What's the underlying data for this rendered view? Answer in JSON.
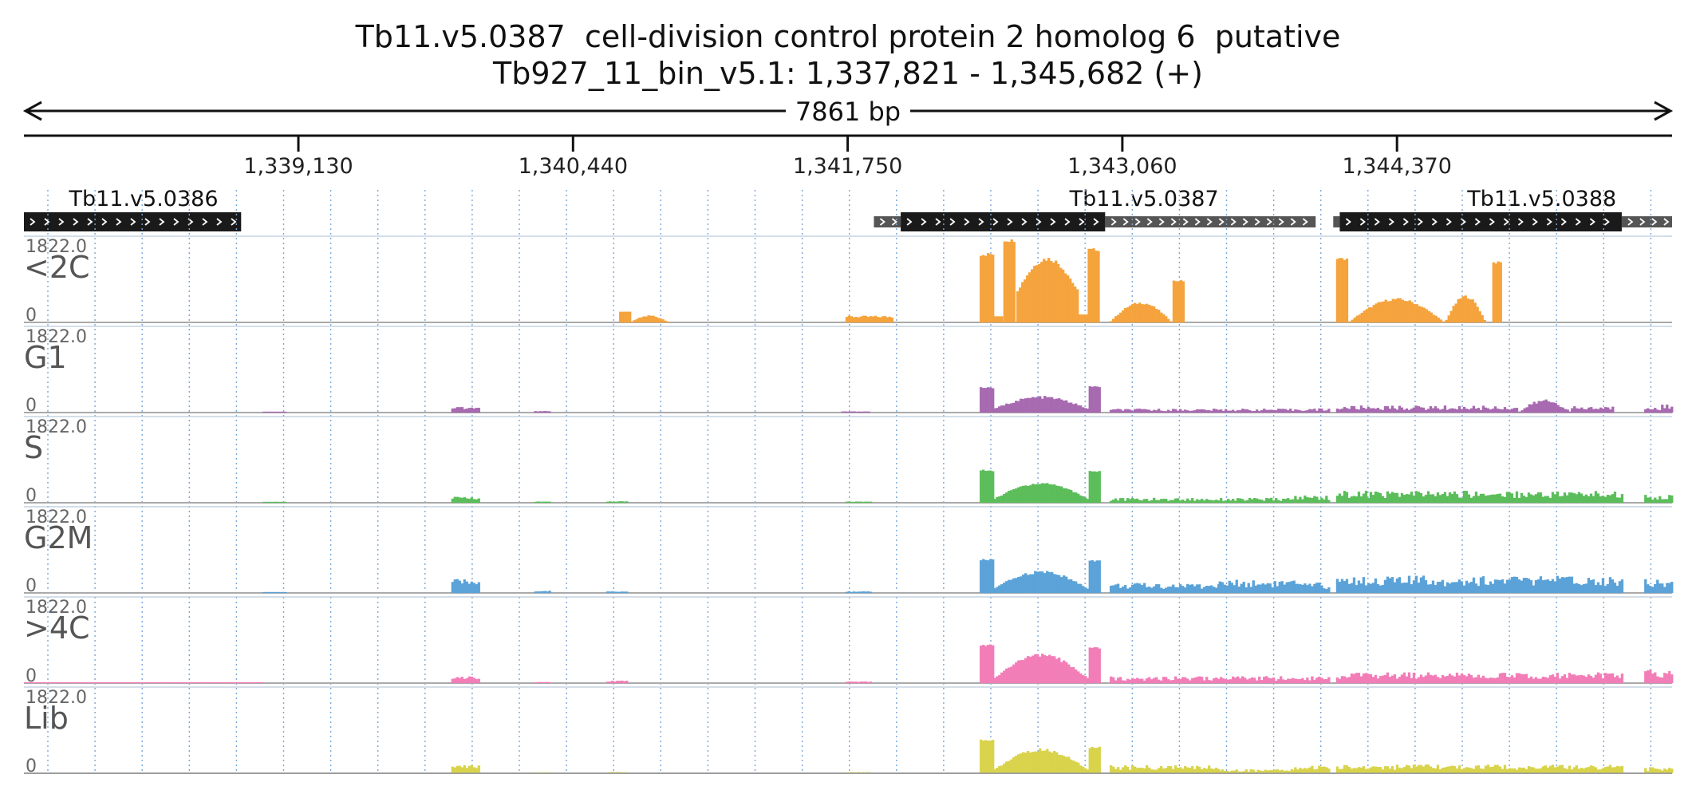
{
  "title": "Tb11.v5.0387  cell-division control protein 2 homolog 6  putative",
  "subtitle": "Tb927_11_bin_v5.1: 1,337,821 - 1,345,682 (+)",
  "span_label": "7861 bp",
  "region": {
    "start": 1337821,
    "end": 1345682
  },
  "colors": {
    "<2C": "#f5a33c",
    "G1": "#a769b0",
    "S": "#5bbd5a",
    "G2M": "#5aa2d8",
    ">4C": "#f27db7",
    "Lib": "#d8d34a",
    "gene": "#1a1a1a",
    "utr": "#555555",
    "grid": "#7aa7d8"
  },
  "chart_data": {
    "type": "area",
    "x_axis": {
      "ticks": [
        1339130,
        1340440,
        1341750,
        1343060,
        1344370
      ],
      "tick_labels": [
        "1,339,130",
        "1,340,440",
        "1,341,750",
        "1,343,060",
        "1,344,370"
      ],
      "range": [
        1337821,
        1345682
      ]
    },
    "genes": [
      {
        "name": "Tb11.v5.0386",
        "utr5": null,
        "cds": [
          1337821,
          1338857
        ],
        "utr3": null,
        "strand": "+"
      },
      {
        "name": "Tb11.v5.0387",
        "utr5": [
          1341875,
          1342003
        ],
        "cds": [
          1342003,
          1342978
        ],
        "utr3": [
          1342978,
          1343982
        ],
        "strand": "+"
      },
      {
        "name": "Tb11.v5.0388",
        "utr5": [
          1344066,
          1344097
        ],
        "cds": [
          1344097,
          1345442
        ],
        "utr3": [
          1345442,
          1345682
        ],
        "strand": "+"
      }
    ],
    "grid": true,
    "tracks": [
      {
        "name": "<2C",
        "ymax": "1822.0",
        "ymin": "0",
        "segments": [
          {
            "x": [
              1340660,
              1340715
            ],
            "shape": "flat",
            "y": 230,
            "noise": 0
          },
          {
            "x": [
              1340715,
              1340900
            ],
            "shape": "hump",
            "y": 140,
            "noise": 0.15
          },
          {
            "x": [
              1341740,
              1341965
            ],
            "shape": "flat",
            "y": 120,
            "noise": 0.2
          },
          {
            "x": [
              1342380,
              1342445
            ],
            "shape": "flat",
            "y": 1480,
            "noise": 0.03
          },
          {
            "x": [
              1342445,
              1342493
            ],
            "shape": "flat",
            "y": 130,
            "noise": 0
          },
          {
            "x": [
              1342493,
              1342555
            ],
            "shape": "flat",
            "y": 1780,
            "noise": 0.02
          },
          {
            "x": [
              1342555,
              1342850
            ],
            "shape": "hump",
            "y": 1380,
            "min": 650,
            "noise": 0.04
          },
          {
            "x": [
              1342850,
              1342895
            ],
            "shape": "flat",
            "y": 170,
            "noise": 0
          },
          {
            "x": [
              1342895,
              1342955
            ],
            "shape": "flat",
            "y": 1580,
            "noise": 0.02
          },
          {
            "x": [
              1343000,
              1343300
            ],
            "shape": "hump",
            "y": 420,
            "noise": 0.06
          },
          {
            "x": [
              1343300,
              1343360
            ],
            "shape": "flat",
            "y": 900,
            "noise": 0.02
          },
          {
            "x": [
              1344080,
              1344140
            ],
            "shape": "flat",
            "y": 1380,
            "noise": 0.02
          },
          {
            "x": [
              1344140,
              1344600
            ],
            "shape": "hump",
            "y": 500,
            "noise": 0.06
          },
          {
            "x": [
              1344600,
              1344795
            ],
            "shape": "hump",
            "y": 560,
            "noise": 0.06
          },
          {
            "x": [
              1344825,
              1344870
            ],
            "shape": "flat",
            "y": 1300,
            "noise": 0.02
          }
        ]
      },
      {
        "name": "G1",
        "ymax": "1822.0",
        "ymin": "0",
        "segments": [
          {
            "x": [
              1338960,
              1339070
            ],
            "shape": "flat",
            "y": 15,
            "noise": 0.3
          },
          {
            "x": [
              1339860,
              1340000
            ],
            "shape": "flat",
            "y": 100,
            "noise": 0.3
          },
          {
            "x": [
              1340255,
              1340330
            ],
            "shape": "flat",
            "y": 25,
            "noise": 0.3
          },
          {
            "x": [
              1341720,
              1341860
            ],
            "shape": "flat",
            "y": 20,
            "noise": 0.3
          },
          {
            "x": [
              1342380,
              1342445
            ],
            "shape": "flat",
            "y": 540,
            "noise": 0.03
          },
          {
            "x": [
              1342445,
              1342900
            ],
            "shape": "hump",
            "y": 330,
            "min": 70,
            "noise": 0.1
          },
          {
            "x": [
              1342900,
              1342955
            ],
            "shape": "flat",
            "y": 560,
            "noise": 0.03
          },
          {
            "x": [
              1343000,
              1343880
            ],
            "shape": "flat",
            "y": 55,
            "noise": 0.5
          },
          {
            "x": [
              1343880,
              1344050
            ],
            "shape": "flat",
            "y": 60,
            "noise": 0.5
          },
          {
            "x": [
              1344080,
              1344950
            ],
            "shape": "flat",
            "y": 100,
            "noise": 0.5
          },
          {
            "x": [
              1344950,
              1345200
            ],
            "shape": "hump",
            "y": 250,
            "noise": 0.2
          },
          {
            "x": [
              1345200,
              1345400
            ],
            "shape": "flat",
            "y": 90,
            "noise": 0.5
          },
          {
            "x": [
              1345550,
              1345682
            ],
            "shape": "flat",
            "y": 120,
            "noise": 0.6
          }
        ]
      },
      {
        "name": "S",
        "ymax": "1822.0",
        "ymin": "0",
        "segments": [
          {
            "x": [
              1338960,
              1339070
            ],
            "shape": "flat",
            "y": 15,
            "noise": 0.3
          },
          {
            "x": [
              1339860,
              1340000
            ],
            "shape": "flat",
            "y": 100,
            "noise": 0.3
          },
          {
            "x": [
              1340255,
              1340330
            ],
            "shape": "flat",
            "y": 20,
            "noise": 0.3
          },
          {
            "x": [
              1340600,
              1340700
            ],
            "shape": "flat",
            "y": 25,
            "noise": 0.3
          },
          {
            "x": [
              1341740,
              1341860
            ],
            "shape": "flat",
            "y": 20,
            "noise": 0.3
          },
          {
            "x": [
              1342380,
              1342445
            ],
            "shape": "flat",
            "y": 700,
            "noise": 0.03
          },
          {
            "x": [
              1342445,
              1342900
            ],
            "shape": "hump",
            "y": 420,
            "min": 70,
            "noise": 0.08
          },
          {
            "x": [
              1342900,
              1342955
            ],
            "shape": "flat",
            "y": 680,
            "noise": 0.03
          },
          {
            "x": [
              1343000,
              1343880
            ],
            "shape": "flat",
            "y": 70,
            "noise": 0.5
          },
          {
            "x": [
              1343880,
              1344050
            ],
            "shape": "flat",
            "y": 110,
            "noise": 0.5
          },
          {
            "x": [
              1344080,
              1345450
            ],
            "shape": "flat",
            "y": 180,
            "noise": 0.45
          },
          {
            "x": [
              1345550,
              1345682
            ],
            "shape": "flat",
            "y": 120,
            "noise": 0.5
          }
        ]
      },
      {
        "name": "G2M",
        "ymax": "1822.0",
        "ymin": "0",
        "segments": [
          {
            "x": [
              1338960,
              1339070
            ],
            "shape": "flat",
            "y": 15,
            "noise": 0.3
          },
          {
            "x": [
              1339860,
              1340000
            ],
            "shape": "flat",
            "y": 230,
            "noise": 0.3
          },
          {
            "x": [
              1340255,
              1340330
            ],
            "shape": "flat",
            "y": 35,
            "noise": 0.3
          },
          {
            "x": [
              1340600,
              1340700
            ],
            "shape": "flat",
            "y": 25,
            "noise": 0.3
          },
          {
            "x": [
              1341740,
              1341860
            ],
            "shape": "flat",
            "y": 25,
            "noise": 0.3
          },
          {
            "x": [
              1342380,
              1342445
            ],
            "shape": "flat",
            "y": 720,
            "noise": 0.03
          },
          {
            "x": [
              1342445,
              1342900
            ],
            "shape": "hump",
            "y": 450,
            "min": 80,
            "noise": 0.08
          },
          {
            "x": [
              1342900,
              1342955
            ],
            "shape": "flat",
            "y": 700,
            "noise": 0.03
          },
          {
            "x": [
              1343000,
              1343520
            ],
            "shape": "flat",
            "y": 150,
            "noise": 0.45
          },
          {
            "x": [
              1343520,
              1343880
            ],
            "shape": "flat",
            "y": 200,
            "noise": 0.45
          },
          {
            "x": [
              1343880,
              1344050
            ],
            "shape": "flat",
            "y": 150,
            "noise": 0.5
          },
          {
            "x": [
              1344080,
              1345450
            ],
            "shape": "flat",
            "y": 260,
            "noise": 0.45
          },
          {
            "x": [
              1345550,
              1345682
            ],
            "shape": "flat",
            "y": 220,
            "noise": 0.5
          }
        ]
      },
      {
        "name": ">4C",
        "ymax": "1822.0",
        "ymin": "0",
        "segments": [
          {
            "x": [
              1337821,
              1338960
            ],
            "shape": "flat",
            "y": 12,
            "noise": 0.3
          },
          {
            "x": [
              1339860,
              1340000
            ],
            "shape": "flat",
            "y": 120,
            "noise": 0.3
          },
          {
            "x": [
              1340255,
              1340330
            ],
            "shape": "flat",
            "y": 20,
            "noise": 0.3
          },
          {
            "x": [
              1340600,
              1340700
            ],
            "shape": "flat",
            "y": 40,
            "noise": 0.3
          },
          {
            "x": [
              1341740,
              1341860
            ],
            "shape": "flat",
            "y": 25,
            "noise": 0.3
          },
          {
            "x": [
              1342380,
              1342445
            ],
            "shape": "flat",
            "y": 820,
            "noise": 0.03
          },
          {
            "x": [
              1342445,
              1342900
            ],
            "shape": "hump",
            "y": 600,
            "min": 80,
            "noise": 0.08
          },
          {
            "x": [
              1342900,
              1342955
            ],
            "shape": "flat",
            "y": 760,
            "noise": 0.03
          },
          {
            "x": [
              1343000,
              1343880
            ],
            "shape": "flat",
            "y": 100,
            "noise": 0.5
          },
          {
            "x": [
              1343880,
              1344050
            ],
            "shape": "flat",
            "y": 110,
            "noise": 0.5
          },
          {
            "x": [
              1344080,
              1345450
            ],
            "shape": "flat",
            "y": 160,
            "noise": 0.45
          },
          {
            "x": [
              1345550,
              1345682
            ],
            "shape": "flat",
            "y": 200,
            "noise": 0.6
          }
        ]
      },
      {
        "name": "Lib",
        "ymax": "1822.0",
        "ymin": "0",
        "segments": [
          {
            "x": [
              1339860,
              1340000
            ],
            "shape": "flat",
            "y": 140,
            "noise": 0.3
          },
          {
            "x": [
              1340255,
              1340330
            ],
            "shape": "flat",
            "y": 15,
            "noise": 0.3
          },
          {
            "x": [
              1340600,
              1340700
            ],
            "shape": "flat",
            "y": 20,
            "noise": 0.3
          },
          {
            "x": [
              1341740,
              1341860
            ],
            "shape": "flat",
            "y": 20,
            "noise": 0.3
          },
          {
            "x": [
              1342380,
              1342445
            ],
            "shape": "flat",
            "y": 720,
            "noise": 0.03
          },
          {
            "x": [
              1342445,
              1342900
            ],
            "shape": "hump",
            "y": 500,
            "min": 60,
            "noise": 0.08
          },
          {
            "x": [
              1342900,
              1342955
            ],
            "shape": "flat",
            "y": 560,
            "noise": 0.03
          },
          {
            "x": [
              1343000,
              1343520
            ],
            "shape": "flat",
            "y": 120,
            "noise": 0.45
          },
          {
            "x": [
              1343520,
              1343880
            ],
            "shape": "flat",
            "y": 60,
            "noise": 0.45
          },
          {
            "x": [
              1343880,
              1344050
            ],
            "shape": "flat",
            "y": 120,
            "noise": 0.5
          },
          {
            "x": [
              1344080,
              1345450
            ],
            "shape": "flat",
            "y": 130,
            "noise": 0.45
          },
          {
            "x": [
              1345550,
              1345682
            ],
            "shape": "flat",
            "y": 90,
            "noise": 0.5
          }
        ]
      }
    ]
  }
}
